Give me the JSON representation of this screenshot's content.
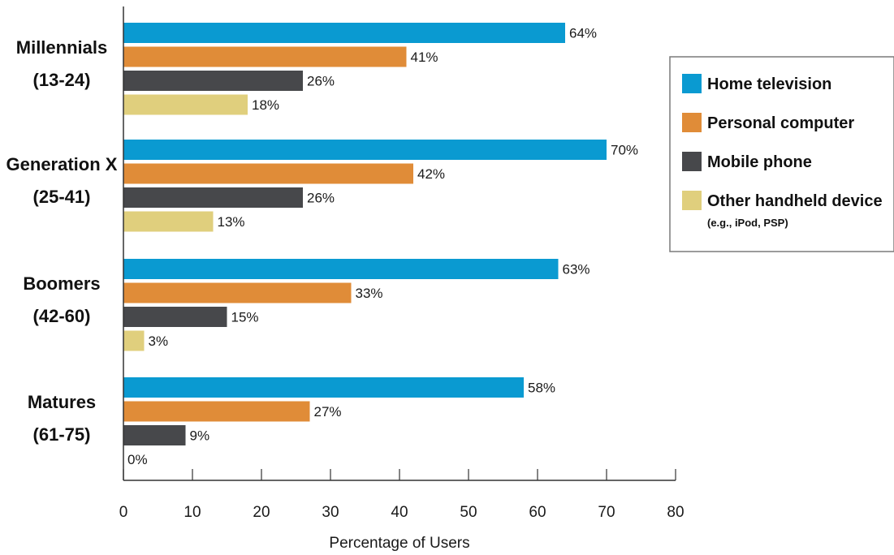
{
  "chart_data": {
    "type": "bar",
    "orientation": "horizontal",
    "categories": [
      [
        "Millennials",
        "(13-24)"
      ],
      [
        "Generation X",
        "(25-41)"
      ],
      [
        "Boomers",
        "(42-60)"
      ],
      [
        "Matures",
        "(61-75)"
      ]
    ],
    "series": [
      {
        "name": "Home television",
        "color": "#0a9ad1",
        "values": [
          64,
          70,
          63,
          58
        ],
        "labels": [
          "64%",
          "70%",
          "63%",
          "58%"
        ]
      },
      {
        "name": "Personal computer",
        "color": "#e08c38",
        "values": [
          41,
          42,
          33,
          27
        ],
        "labels": [
          "41%",
          "42%",
          "33%",
          "27%"
        ]
      },
      {
        "name": "Mobile phone",
        "color": "#47484b",
        "values": [
          26,
          26,
          15,
          9
        ],
        "labels": [
          "26%",
          "26%",
          "15%",
          "9%"
        ]
      },
      {
        "name": "Other handheld device",
        "note": "(e.g., iPod, PSP)",
        "color": "#e0cf7d",
        "values": [
          18,
          13,
          3,
          0
        ],
        "labels": [
          "18%",
          "13%",
          "3%",
          "0%"
        ]
      }
    ],
    "xlabel": "Percentage of Users",
    "ylabel": "",
    "xlim": [
      0,
      80
    ],
    "xticks": [
      0,
      10,
      20,
      30,
      40,
      50,
      60,
      70,
      80
    ],
    "grid": false,
    "legend": "right"
  }
}
